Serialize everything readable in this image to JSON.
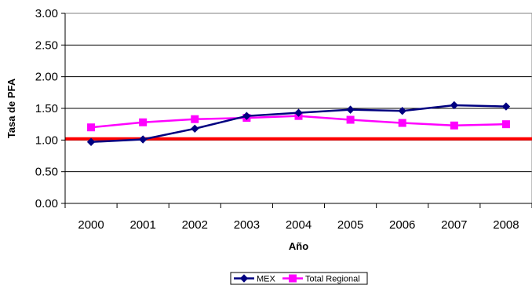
{
  "chart_data": {
    "type": "line",
    "x": [
      "2000",
      "2001",
      "2002",
      "2003",
      "2004",
      "2005",
      "2006",
      "2007",
      "2008"
    ],
    "series": [
      {
        "name": "MEX",
        "values": [
          0.97,
          1.01,
          1.18,
          1.38,
          1.43,
          1.48,
          1.46,
          1.55,
          1.53
        ],
        "color": "#000080",
        "marker": "diamond"
      },
      {
        "name": "Total Regional",
        "values": [
          1.2,
          1.28,
          1.33,
          1.35,
          1.38,
          1.32,
          1.27,
          1.23,
          1.25
        ],
        "color": "#ff00ff",
        "marker": "square"
      }
    ],
    "reference_line": {
      "value": 1.02,
      "color": "#ff0000"
    },
    "xlabel": "Año",
    "ylabel": "Tasa de PFA",
    "ylim": [
      0,
      3
    ],
    "yticks": [
      "0.00",
      "0.50",
      "1.00",
      "1.50",
      "2.00",
      "2.50",
      "3.00"
    ],
    "ytick_values": [
      0,
      0.5,
      1,
      1.5,
      2,
      2.5,
      3
    ],
    "grid": "horizontal",
    "legend_position": "bottom-center"
  }
}
